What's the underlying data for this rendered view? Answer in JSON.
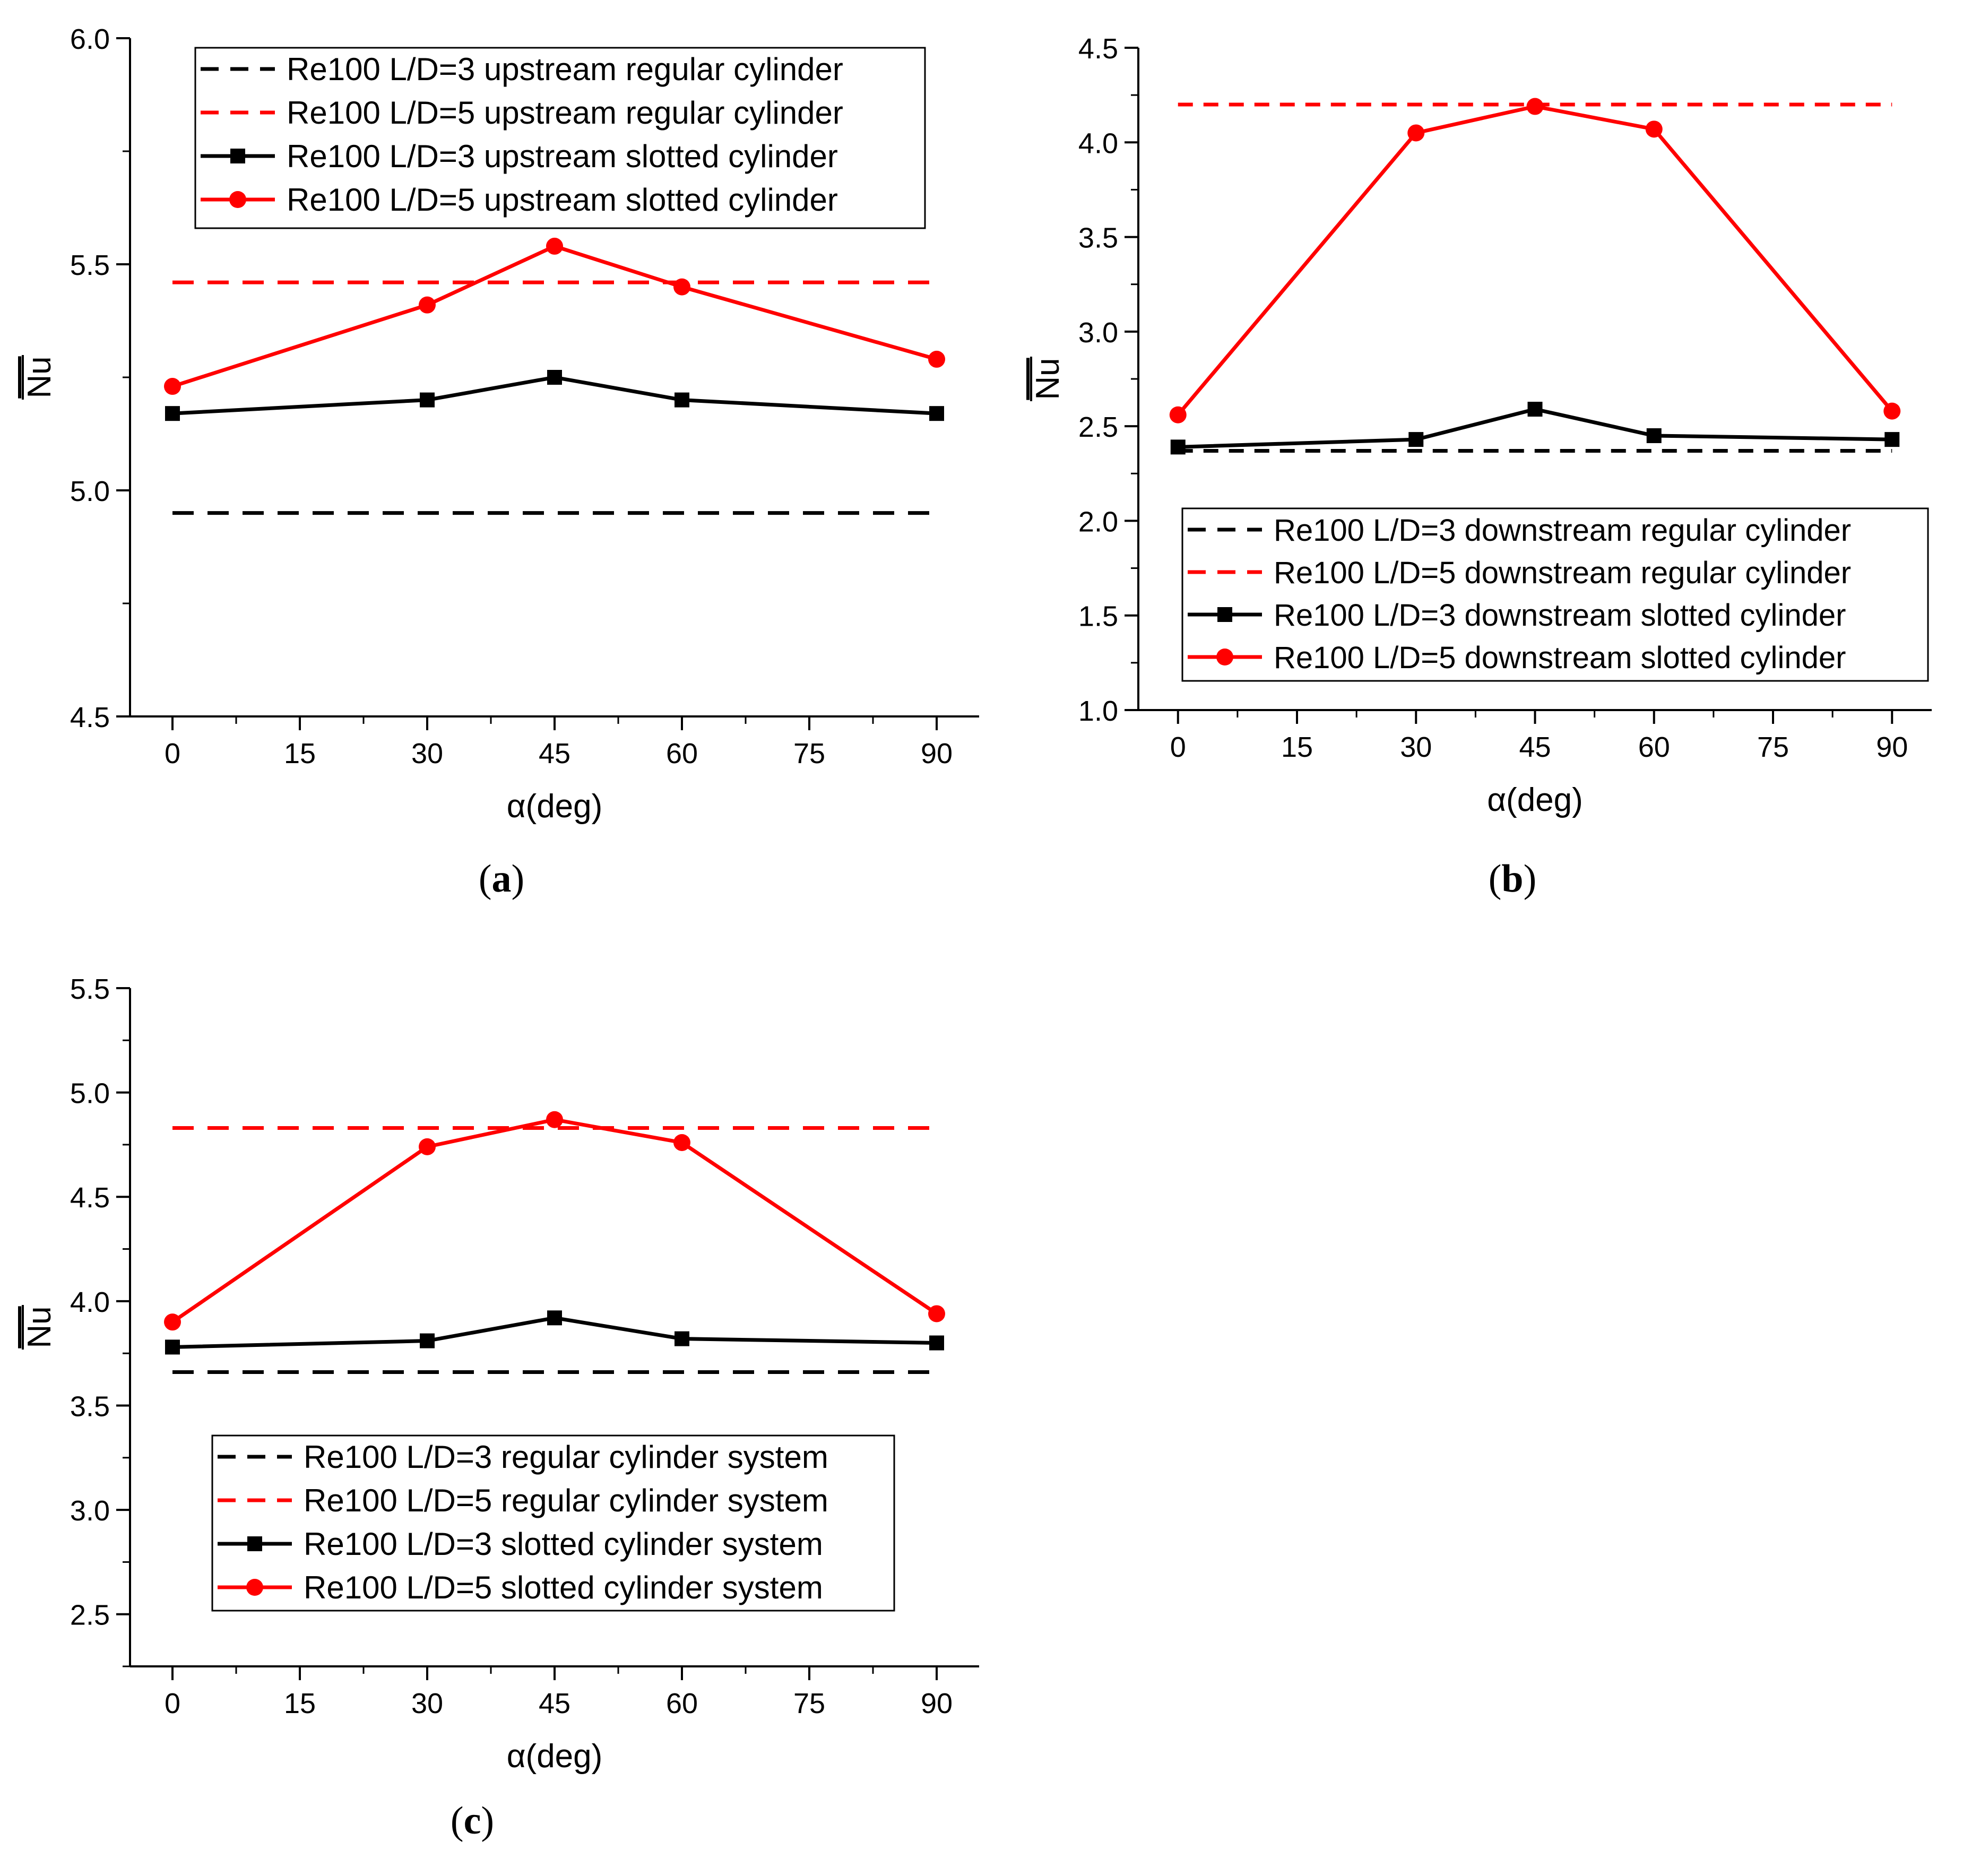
{
  "figure": {
    "caption_labels": [
      "a",
      "b",
      "c"
    ]
  },
  "colors": {
    "black": "#000000",
    "red": "#ff0000",
    "axis": "#000000",
    "background": "#ffffff"
  },
  "chart_data": [
    {
      "id": "a",
      "type": "line",
      "caption": "a",
      "title": "",
      "xlabel": "α(deg)",
      "ylabel": "Nu",
      "ylabel_overline": true,
      "xlim": [
        -5,
        95
      ],
      "ylim": [
        4.5,
        6.0
      ],
      "xticks": [
        0,
        15,
        30,
        45,
        60,
        75,
        90
      ],
      "xtick_labels": [
        "0",
        "15",
        "30",
        "45",
        "60",
        "75",
        "90"
      ],
      "yticks": [
        4.5,
        5.0,
        5.5,
        6.0
      ],
      "ytick_labels": [
        "4.5",
        "5.0",
        "5.5",
        "6.0"
      ],
      "grid": false,
      "legend_position": "top",
      "series": [
        {
          "name": "Re100 L/D=3 upstream regular cylinder",
          "style": "dashed",
          "color": "#000000",
          "marker": "none",
          "x": [
            0,
            90
          ],
          "values": [
            4.95,
            4.95
          ]
        },
        {
          "name": "Re100 L/D=5 upstream regular cylinder",
          "style": "dashed",
          "color": "#ff0000",
          "marker": "none",
          "x": [
            0,
            90
          ],
          "values": [
            5.46,
            5.46
          ]
        },
        {
          "name": "Re100 L/D=3 upstream slotted  cylinder",
          "style": "solid",
          "color": "#000000",
          "marker": "square",
          "x": [
            0,
            30,
            45,
            60,
            90
          ],
          "values": [
            5.17,
            5.2,
            5.25,
            5.2,
            5.17
          ]
        },
        {
          "name": "Re100 L/D=5 upstream slotted  cylinder",
          "style": "solid",
          "color": "#ff0000",
          "marker": "circle",
          "x": [
            0,
            30,
            45,
            60,
            90
          ],
          "values": [
            5.23,
            5.41,
            5.54,
            5.45,
            5.29
          ]
        }
      ]
    },
    {
      "id": "b",
      "type": "line",
      "caption": "b",
      "title": "",
      "xlabel": "α(deg)",
      "ylabel": "Nu",
      "ylabel_overline": true,
      "xlim": [
        -5,
        95
      ],
      "ylim": [
        1.0,
        4.5
      ],
      "xticks": [
        0,
        15,
        30,
        45,
        60,
        75,
        90
      ],
      "xtick_labels": [
        "0",
        "15",
        "30",
        "45",
        "60",
        "75",
        "90"
      ],
      "yticks": [
        1.0,
        1.5,
        2.0,
        2.5,
        3.0,
        3.5,
        4.0,
        4.5
      ],
      "ytick_labels": [
        "1.0",
        "1.5",
        "2.0",
        "2.5",
        "3.0",
        "3.5",
        "4.0",
        "4.5"
      ],
      "grid": false,
      "legend_position": "bottom-right",
      "series": [
        {
          "name": "Re100 L/D=3 downstream regular cylinder",
          "style": "dashed",
          "color": "#000000",
          "marker": "none",
          "x": [
            0,
            90
          ],
          "values": [
            2.37,
            2.37
          ]
        },
        {
          "name": "Re100 L/D=5 downstream regular cylinder",
          "style": "dashed",
          "color": "#ff0000",
          "marker": "none",
          "x": [
            0,
            90
          ],
          "values": [
            4.2,
            4.2
          ]
        },
        {
          "name": "Re100 L/D=3 downstream slotted  cylinder",
          "style": "solid",
          "color": "#000000",
          "marker": "square",
          "x": [
            0,
            30,
            45,
            60,
            90
          ],
          "values": [
            2.39,
            2.43,
            2.59,
            2.45,
            2.43
          ]
        },
        {
          "name": "Re100 L/D=5 downstream slotted  cylinder",
          "style": "solid",
          "color": "#ff0000",
          "marker": "circle",
          "x": [
            0,
            30,
            45,
            60,
            90
          ],
          "values": [
            2.56,
            4.05,
            4.19,
            4.07,
            2.58
          ]
        }
      ]
    },
    {
      "id": "c",
      "type": "line",
      "caption": "c",
      "title": "",
      "xlabel": "α(deg)",
      "ylabel": "Nu",
      "ylabel_overline": true,
      "xlim": [
        -5,
        95
      ],
      "ylim": [
        2.25,
        5.5
      ],
      "xticks": [
        0,
        15,
        30,
        45,
        60,
        75,
        90
      ],
      "xtick_labels": [
        "0",
        "15",
        "30",
        "45",
        "60",
        "75",
        "90"
      ],
      "yticks": [
        2.5,
        3.0,
        3.5,
        4.0,
        4.5,
        5.0,
        5.5
      ],
      "ytick_labels": [
        "2.5",
        "3.0",
        "3.5",
        "4.0",
        "4.5",
        "5.0",
        "5.5"
      ],
      "grid": false,
      "legend_position": "bottom-left",
      "series": [
        {
          "name": "Re100 L/D=3 regular cylinder system",
          "style": "dashed",
          "color": "#000000",
          "marker": "none",
          "x": [
            0,
            90
          ],
          "values": [
            3.66,
            3.66
          ]
        },
        {
          "name": "Re100 L/D=5 regular cylinder system",
          "style": "dashed",
          "color": "#ff0000",
          "marker": "none",
          "x": [
            0,
            90
          ],
          "values": [
            4.83,
            4.83
          ]
        },
        {
          "name": "Re100 L/D=3 slotted cylinder system",
          "style": "solid",
          "color": "#000000",
          "marker": "square",
          "x": [
            0,
            30,
            45,
            60,
            90
          ],
          "values": [
            3.78,
            3.81,
            3.92,
            3.82,
            3.8
          ]
        },
        {
          "name": "Re100 L/D=5 slotted cylinder system",
          "style": "solid",
          "color": "#ff0000",
          "marker": "circle",
          "x": [
            0,
            30,
            45,
            60,
            90
          ],
          "values": [
            3.9,
            4.74,
            4.87,
            4.76,
            3.94
          ]
        }
      ]
    }
  ]
}
